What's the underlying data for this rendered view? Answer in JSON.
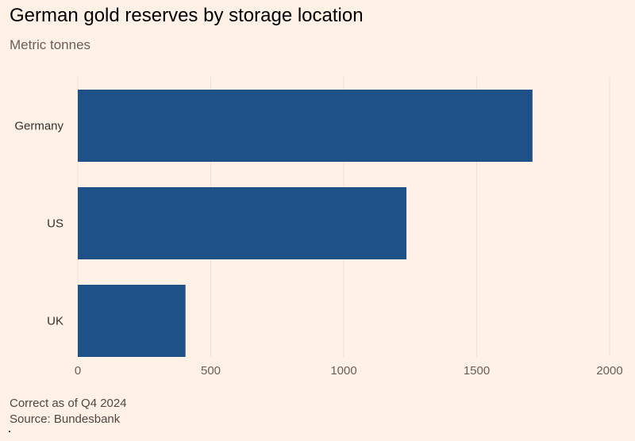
{
  "header": {
    "title": "German gold reserves by storage location",
    "subtitle": "Metric tonnes"
  },
  "footer": {
    "note": "Correct as of Q4 2024",
    "source": "Source: Bundesbank"
  },
  "colors": {
    "background": "#fff1e5",
    "bar": "#1f5189",
    "gridline": "#ebe0d6"
  },
  "chart_data": {
    "type": "bar",
    "orientation": "horizontal",
    "title": "German gold reserves by storage location",
    "subtitle": "Metric tonnes",
    "categories": [
      "Germany",
      "US",
      "UK"
    ],
    "values": [
      1710,
      1236,
      405
    ],
    "xlim": [
      0,
      2000
    ],
    "xticks": [
      0,
      500,
      1000,
      1500,
      2000
    ],
    "grid": true,
    "legend": "none"
  }
}
